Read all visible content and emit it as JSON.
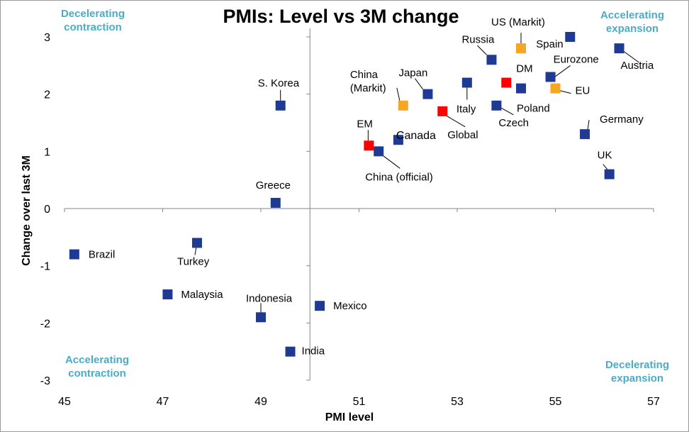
{
  "chart_data": {
    "type": "scatter",
    "title": "PMIs:  Level vs 3M change",
    "xlabel": "PMI level",
    "ylabel": "Change over last 3M",
    "xlim": [
      45,
      57
    ],
    "ylim": [
      -3,
      3
    ],
    "xticks": [
      45,
      47,
      49,
      51,
      53,
      55,
      57
    ],
    "yticks": [
      -3,
      -2,
      -1,
      0,
      1,
      2,
      3
    ],
    "grid": false,
    "colors": {
      "country": "#1f3a93",
      "aggregate": "#ff0000",
      "alternative": "#f5a623",
      "quadrant_text": "#4bacc6"
    },
    "quadrants": {
      "top_left": [
        "Decelerating",
        "contraction"
      ],
      "top_right": [
        "Accelerating",
        "expansion"
      ],
      "bottom_left": [
        "Accelerating",
        "contraction"
      ],
      "bottom_right": [
        "Decelerating",
        "expansion"
      ]
    },
    "points": [
      {
        "label": "Spain",
        "x": 55.3,
        "y": 3.0,
        "group": "country"
      },
      {
        "label": "Austria",
        "x": 56.3,
        "y": 2.8,
        "group": "country"
      },
      {
        "label": "US (Markit)",
        "x": 54.3,
        "y": 2.8,
        "group": "alternative"
      },
      {
        "label": "Russia",
        "x": 53.7,
        "y": 2.6,
        "group": "country"
      },
      {
        "label": "Eurozone",
        "x": 54.9,
        "y": 2.3,
        "group": "country"
      },
      {
        "label": "DM",
        "x": 54.0,
        "y": 2.2,
        "group": "aggregate"
      },
      {
        "label": "Italy",
        "x": 53.2,
        "y": 2.2,
        "group": "country"
      },
      {
        "label": "Poland",
        "x": 54.3,
        "y": 2.1,
        "group": "country"
      },
      {
        "label": "EU",
        "x": 55.0,
        "y": 2.1,
        "group": "alternative"
      },
      {
        "label": "Japan",
        "x": 52.4,
        "y": 2.0,
        "group": "country"
      },
      {
        "label": "China (Markit)",
        "x": 51.9,
        "y": 1.8,
        "group": "alternative"
      },
      {
        "label": "Czech",
        "x": 53.8,
        "y": 1.8,
        "group": "country"
      },
      {
        "label": "S. Korea",
        "x": 49.4,
        "y": 1.8,
        "group": "country"
      },
      {
        "label": "Global",
        "x": 52.7,
        "y": 1.7,
        "group": "aggregate"
      },
      {
        "label": "Germany",
        "x": 55.6,
        "y": 1.3,
        "group": "country"
      },
      {
        "label": "Canada",
        "x": 51.8,
        "y": 1.2,
        "group": "country"
      },
      {
        "label": "EM",
        "x": 51.2,
        "y": 1.1,
        "group": "aggregate"
      },
      {
        "label": "China (official)",
        "x": 51.4,
        "y": 1.0,
        "group": "country"
      },
      {
        "label": "UK",
        "x": 56.1,
        "y": 0.6,
        "group": "country"
      },
      {
        "label": "Greece",
        "x": 49.3,
        "y": 0.1,
        "group": "country"
      },
      {
        "label": "Turkey",
        "x": 47.7,
        "y": -0.6,
        "group": "country"
      },
      {
        "label": "Brazil",
        "x": 45.2,
        "y": -0.8,
        "group": "country"
      },
      {
        "label": "Malaysia",
        "x": 47.1,
        "y": -1.5,
        "group": "country"
      },
      {
        "label": "Mexico",
        "x": 50.2,
        "y": -1.7,
        "group": "country"
      },
      {
        "label": "Indonesia",
        "x": 49.0,
        "y": -1.9,
        "group": "country"
      },
      {
        "label": "India",
        "x": 49.6,
        "y": -2.5,
        "group": "country"
      }
    ]
  }
}
